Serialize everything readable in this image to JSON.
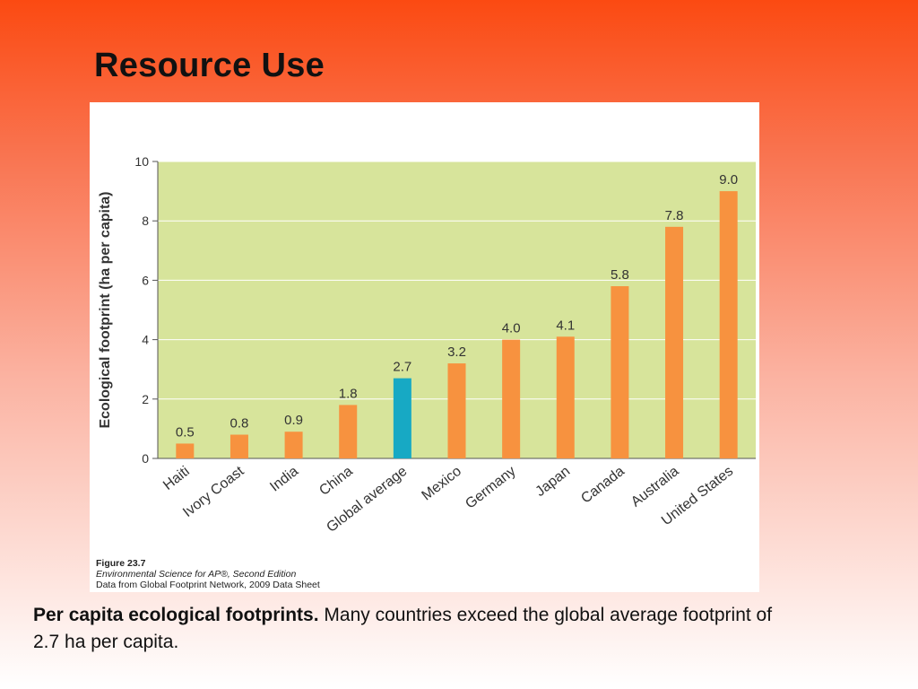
{
  "slide": {
    "title": "Resource Use",
    "caption_bold": "Per capita ecological footprints.",
    "caption_text": "Many countries exceed the global average footprint of 2.7 ha per capita."
  },
  "figure": {
    "number": "Figure 23.7",
    "book": "Environmental Science for AP®, Second Edition",
    "source": "Data from Global Footprint Network, 2009 Data Sheet"
  },
  "chart_data": {
    "type": "bar",
    "title": "",
    "xlabel": "",
    "ylabel": "Ecological footprint (ha per capita)",
    "ylim": [
      0,
      10
    ],
    "yticks": [
      0,
      2,
      4,
      6,
      8,
      10
    ],
    "grid": true,
    "categories": [
      "Haiti",
      "Ivory Coast",
      "India",
      "China",
      "Global average",
      "Mexico",
      "Germany",
      "Japan",
      "Canada",
      "Australia",
      "United States"
    ],
    "values": [
      0.5,
      0.8,
      0.9,
      1.8,
      2.7,
      3.2,
      4.0,
      4.1,
      5.8,
      7.8,
      9.0
    ],
    "value_labels": [
      "0.5",
      "0.8",
      "0.9",
      "1.8",
      "2.7",
      "3.2",
      "4.0",
      "4.1",
      "5.8",
      "7.8",
      "9.0"
    ],
    "highlight_category": "Global average",
    "colors": {
      "bar": "#f7923f",
      "highlight": "#17a9c4",
      "plot_bg": "#d7e49b",
      "grid": "#ffffff",
      "axis": "#555555",
      "text": "#333333"
    }
  }
}
